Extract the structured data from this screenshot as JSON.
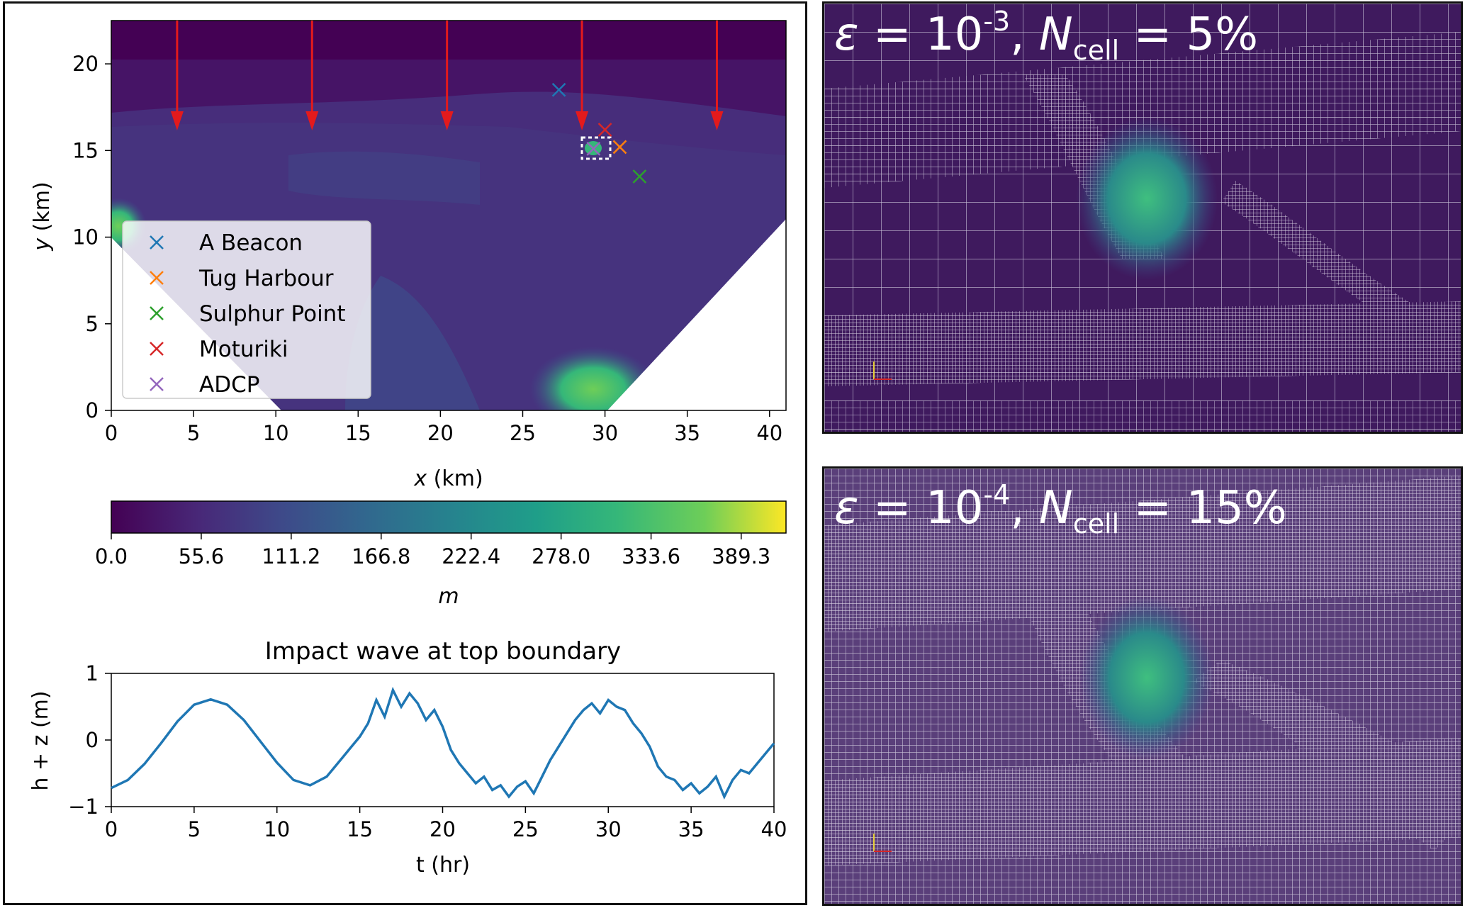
{
  "domain_map": {
    "xlabel_var": "x",
    "xlabel_unit": " (km)",
    "ylabel_var": "y",
    "ylabel_unit": " (km)",
    "xticks": [
      "0",
      "5",
      "10",
      "15",
      "20",
      "25",
      "30",
      "35",
      "40"
    ],
    "yticks": [
      "0",
      "5",
      "10",
      "15",
      "20"
    ],
    "xlim": [
      0,
      41
    ],
    "ylim": [
      0,
      22.5
    ],
    "wave_arrows_x_km": [
      4,
      12.2,
      20.4,
      28.6,
      36.8
    ],
    "legend": [
      {
        "label": "A Beacon",
        "color": "#1f77b4",
        "x_km": 27.2,
        "y_km": 18.5
      },
      {
        "label": "Tug Harbour",
        "color": "#ff7f0e",
        "x_km": 30.9,
        "y_km": 15.2
      },
      {
        "label": "Sulphur Point",
        "color": "#2ca02c",
        "x_km": 32.1,
        "y_km": 13.5
      },
      {
        "label": "Moturiki",
        "color": "#d62728",
        "x_km": 30.0,
        "y_km": 16.2
      },
      {
        "label": "ADCP",
        "color": "#9467bd",
        "x_km": 29.3,
        "y_km": 15.1
      }
    ]
  },
  "colorbar": {
    "ticks": [
      "0.0",
      "55.6",
      "111.2",
      "166.8",
      "222.4",
      "278.0",
      "333.6",
      "389.3"
    ],
    "label": "m",
    "max": 417
  },
  "chart_data": {
    "type": "line",
    "title": "Impact wave at top boundary",
    "xlabel": "t (hr)",
    "ylabel": "h + z (m)",
    "xlim": [
      0,
      40
    ],
    "ylim": [
      -1,
      1
    ],
    "xticks": [
      "0",
      "5",
      "10",
      "15",
      "20",
      "25",
      "30",
      "35",
      "40"
    ],
    "yticks": [
      "1",
      "0",
      "−1"
    ],
    "series": [
      {
        "color": "#1f77b4",
        "x": [
          0,
          1,
          2,
          3,
          4,
          5,
          6,
          7,
          8,
          9,
          10,
          11,
          12,
          13,
          13.5,
          14,
          14.5,
          15,
          15.5,
          16,
          16.5,
          17,
          17.5,
          18,
          18.5,
          19,
          19.5,
          20,
          20.5,
          21,
          21.5,
          22,
          22.5,
          23,
          23.5,
          24,
          24.5,
          25,
          25.5,
          26,
          26.5,
          27,
          27.5,
          28,
          28.5,
          29,
          29.5,
          30,
          30.5,
          31,
          31.5,
          32,
          32.5,
          33,
          33.5,
          34,
          34.5,
          35,
          35.5,
          36,
          36.5,
          37,
          37.5,
          38,
          38.5,
          39,
          39.5,
          40
        ],
        "values": [
          -0.72,
          -0.6,
          -0.36,
          -0.05,
          0.28,
          0.53,
          0.61,
          0.53,
          0.3,
          -0.02,
          -0.34,
          -0.6,
          -0.68,
          -0.55,
          -0.4,
          -0.25,
          -0.1,
          0.05,
          0.25,
          0.6,
          0.35,
          0.75,
          0.5,
          0.7,
          0.55,
          0.3,
          0.45,
          0.2,
          -0.15,
          -0.35,
          -0.5,
          -0.65,
          -0.55,
          -0.75,
          -0.68,
          -0.85,
          -0.7,
          -0.62,
          -0.8,
          -0.55,
          -0.3,
          -0.1,
          0.1,
          0.3,
          0.45,
          0.55,
          0.4,
          0.6,
          0.5,
          0.45,
          0.25,
          0.1,
          -0.1,
          -0.4,
          -0.55,
          -0.6,
          -0.75,
          -0.65,
          -0.8,
          -0.7,
          -0.55,
          -0.85,
          -0.6,
          -0.45,
          -0.5,
          -0.35,
          -0.2,
          -0.05
        ]
      }
    ]
  },
  "mesh_top": {
    "label_eps": "ε",
    "label_eq1": " = 10",
    "label_exp": "-3",
    "label_sep": ", ",
    "label_n": "N",
    "label_sub": "cell",
    "label_val": " = 5%"
  },
  "mesh_bottom": {
    "label_eps": "ε",
    "label_eq1": " = 10",
    "label_exp": "-4",
    "label_sep": ", ",
    "label_n": "N",
    "label_sub": "cell",
    "label_val": " = 15%"
  },
  "colors": {
    "dark_bg": "#440154",
    "deep": "#471669",
    "mid": "#3b3f85",
    "cyan": "#21918c",
    "green": "#5ec962",
    "yellow": "#fde725",
    "arrow": "#e31a1c"
  }
}
